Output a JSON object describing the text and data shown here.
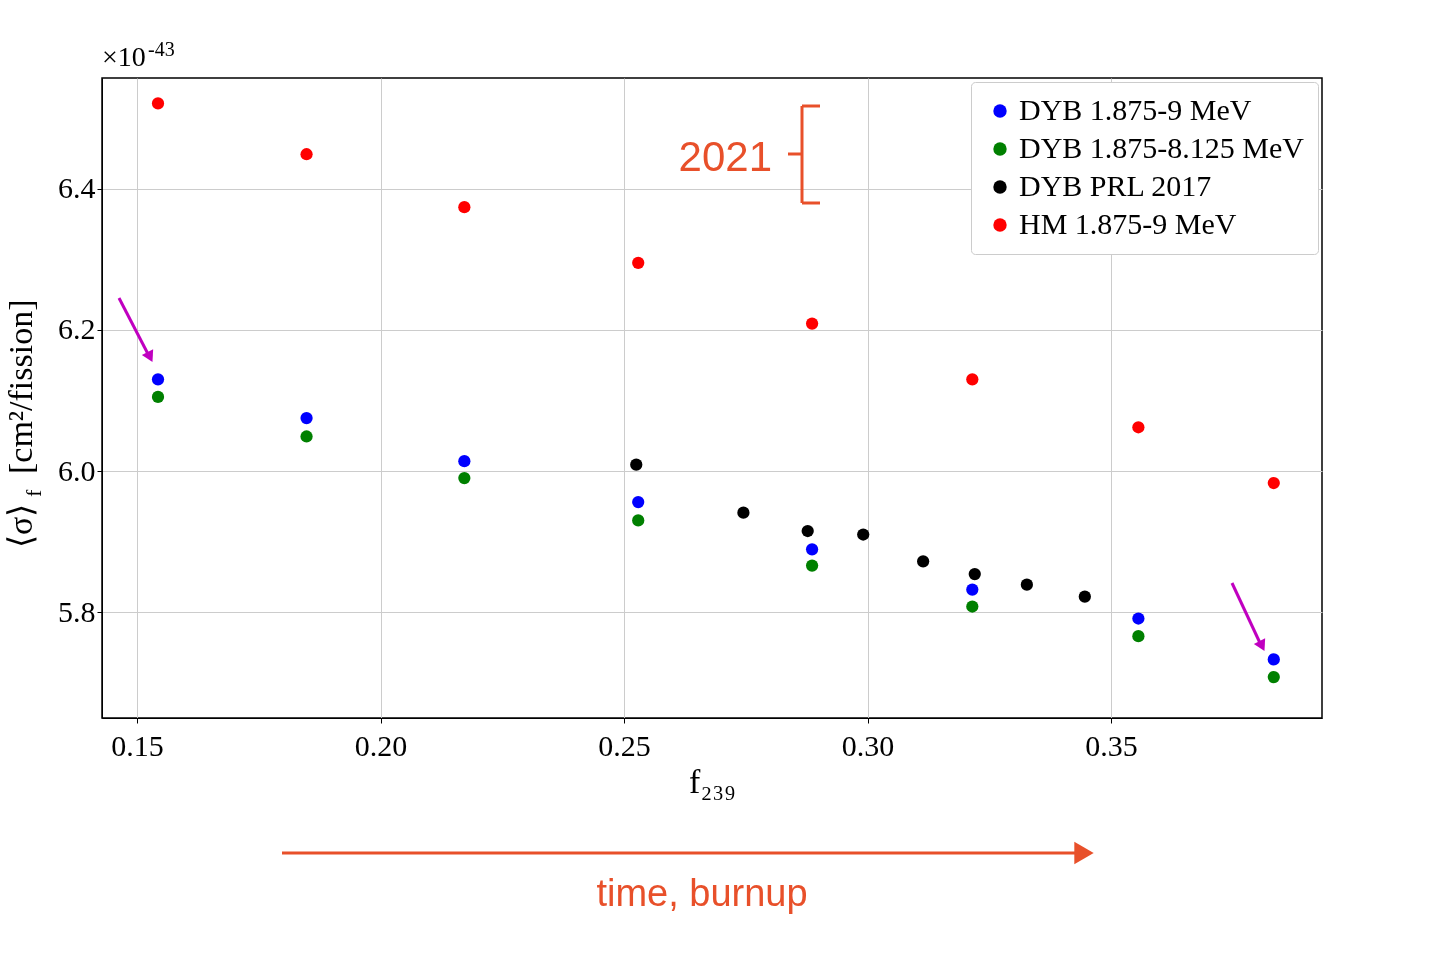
{
  "chart_data": {
    "type": "scatter",
    "xlabel": "f₂₃₉",
    "ylabel": "⟨σ⟩$_{f}$ [cm²/fission]",
    "xlim": [
      0.1428,
      0.3933
    ],
    "ylim": [
      5.65,
      6.557
    ],
    "xticks": [
      0.15,
      {
        "value": 0.2,
        "label": "0.20"
      },
      0.25,
      {
        "value": 0.3,
        "label": "0.30"
      },
      0.35
    ],
    "yticks": [
      5.8,
      {
        "value": 6.0,
        "label": "6.0"
      },
      6.2,
      6.4
    ],
    "grid": true,
    "legend": "top right",
    "marker": "circle",
    "series": [
      {
        "name": "DYB 1.875-9 MeV",
        "color": "#0000ff",
        "x": [
          0.1543,
          0.1848,
          0.2172,
          0.2529,
          0.2886,
          0.3215,
          0.3556,
          0.3834
        ],
        "values": [
          6.13,
          6.075,
          6.014,
          5.956,
          5.889,
          5.832,
          5.791,
          5.733
        ]
      },
      {
        "name": "DYB 1.875-8.125 MeV",
        "color": "#008000",
        "x": [
          0.1543,
          0.1848,
          0.2172,
          0.2529,
          0.2886,
          0.3215,
          0.3556,
          0.3834
        ],
        "values": [
          6.105,
          6.049,
          5.99,
          5.93,
          5.866,
          5.808,
          5.766,
          5.708
        ]
      },
      {
        "name": "DYB PRL 2017",
        "color": "#000000",
        "x": [
          0.2525,
          0.2745,
          0.2877,
          0.2991,
          0.3114,
          0.322,
          0.3327,
          0.3446
        ],
        "values": [
          6.009,
          5.941,
          5.915,
          5.91,
          5.872,
          5.854,
          5.839,
          5.822
        ]
      },
      {
        "name": "HM 1.875-9 MeV",
        "color": "#ff0000",
        "x": [
          0.1543,
          0.1848,
          0.2172,
          0.2529,
          0.2886,
          0.3215,
          0.3556,
          0.3834
        ],
        "values": [
          6.521,
          6.449,
          6.374,
          6.295,
          6.209,
          6.13,
          6.062,
          5.983
        ]
      }
    ],
    "annotations": [
      "×10$^{-43}$",
      "2021",
      "time, burnup"
    ]
  }
}
